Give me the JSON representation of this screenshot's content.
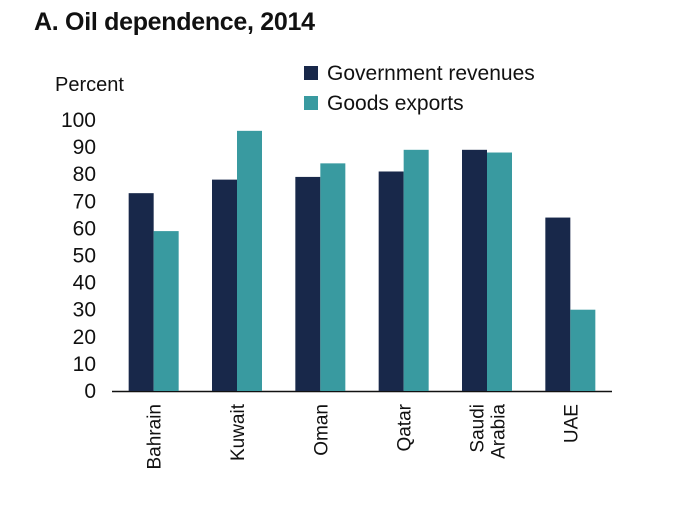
{
  "chart_data": {
    "type": "bar",
    "title": "A. Oil dependence, 2014",
    "ylabel": "Percent",
    "xlabel": "",
    "ylim": [
      0,
      100
    ],
    "yticks": [
      0,
      10,
      20,
      30,
      40,
      50,
      60,
      70,
      80,
      90,
      100
    ],
    "grid": false,
    "legend": "top-right",
    "categories": [
      {
        "lines": [
          "Bahrain"
        ]
      },
      {
        "lines": [
          "Kuwait"
        ]
      },
      {
        "lines": [
          "Oman"
        ]
      },
      {
        "lines": [
          "Qatar"
        ]
      },
      {
        "lines": [
          "Saudi",
          "Arabia"
        ]
      },
      {
        "lines": [
          "UAE"
        ]
      }
    ],
    "series": [
      {
        "name": "Government revenues",
        "color": "#18284a",
        "values": [
          73,
          78,
          79,
          81,
          89,
          64
        ]
      },
      {
        "name": "Goods exports",
        "color": "#399aa0",
        "values": [
          59,
          96,
          84,
          89,
          88,
          30
        ]
      }
    ]
  }
}
